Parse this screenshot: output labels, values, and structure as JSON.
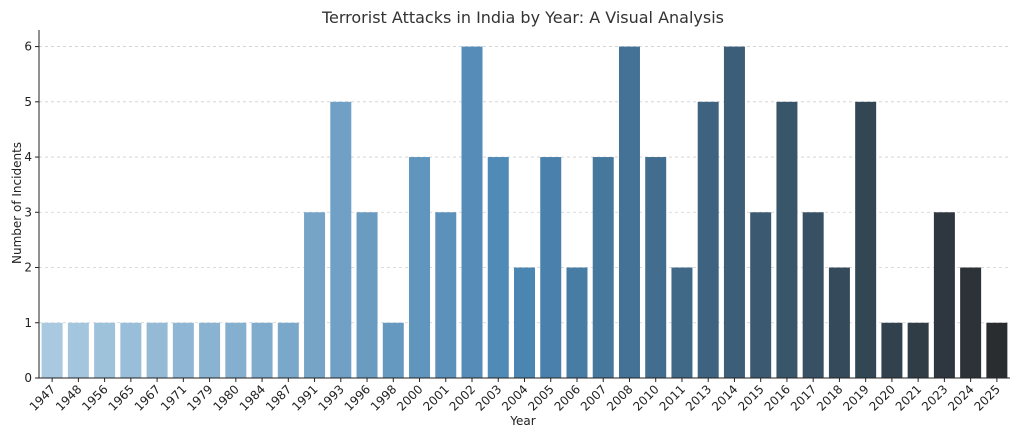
{
  "chart_data": {
    "type": "bar",
    "title": "Terrorist Attacks in India by Year: A Visual Analysis",
    "xlabel": "Year",
    "ylabel": "Number of Incidents",
    "categories": [
      "1947",
      "1948",
      "1956",
      "1965",
      "1967",
      "1971",
      "1979",
      "1980",
      "1984",
      "1987",
      "1991",
      "1993",
      "1996",
      "1998",
      "2000",
      "2001",
      "2002",
      "2003",
      "2004",
      "2005",
      "2006",
      "2007",
      "2008",
      "2010",
      "2011",
      "2013",
      "2014",
      "2015",
      "2016",
      "2017",
      "2018",
      "2019",
      "2020",
      "2021",
      "2023",
      "2024",
      "2025"
    ],
    "values": [
      1,
      1,
      1,
      1,
      1,
      1,
      1,
      1,
      1,
      1,
      3,
      5,
      3,
      1,
      4,
      3,
      6,
      4,
      2,
      4,
      2,
      4,
      6,
      4,
      2,
      5,
      6,
      3,
      5,
      3,
      2,
      5,
      1,
      1,
      3,
      2,
      1
    ],
    "ylim": [
      0,
      6.3
    ],
    "yticks": [
      0,
      1,
      2,
      3,
      4,
      5,
      6
    ],
    "grid": true,
    "color_start": "#a9c9e0",
    "color_mid": "#4b86b3",
    "color_end": "#2a2d30"
  }
}
